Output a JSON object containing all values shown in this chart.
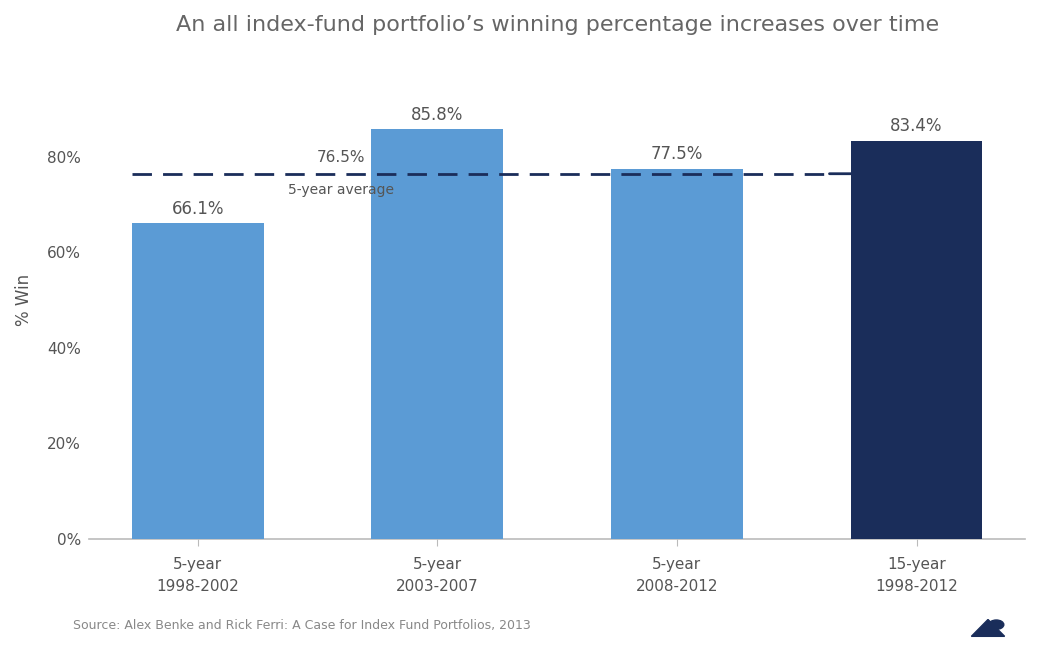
{
  "title": "An all index-fund portfolio’s winning percentage increases over time",
  "categories": [
    "5-year\n1998-2002",
    "5-year\n2003-2007",
    "5-year\n2008-2012",
    "15-year\n1998-2012"
  ],
  "values": [
    66.1,
    85.8,
    77.5,
    83.4
  ],
  "bar_colors": [
    "#5b9bd5",
    "#5b9bd5",
    "#5b9bd5",
    "#1a2d5a"
  ],
  "value_labels": [
    "66.1%",
    "85.8%",
    "77.5%",
    "83.4%"
  ],
  "avg_line_y": 76.5,
  "avg_label": "76.5%",
  "avg_text": "5-year average",
  "ylabel": "% Win",
  "source_text": "Source: Alex Benke and Rick Ferri: A Case for Index Fund Portfolios, 2013",
  "yticks": [
    0,
    20,
    40,
    60,
    80
  ],
  "ytick_labels": [
    "0%",
    "20%",
    "40%",
    "60%",
    "80%"
  ],
  "ylim": [
    0,
    100
  ],
  "title_color": "#666666",
  "axis_color": "#bbbbbb",
  "label_color": "#555555",
  "avg_line_color": "#1a2d5a",
  "source_color": "#888888",
  "background_color": "#ffffff"
}
